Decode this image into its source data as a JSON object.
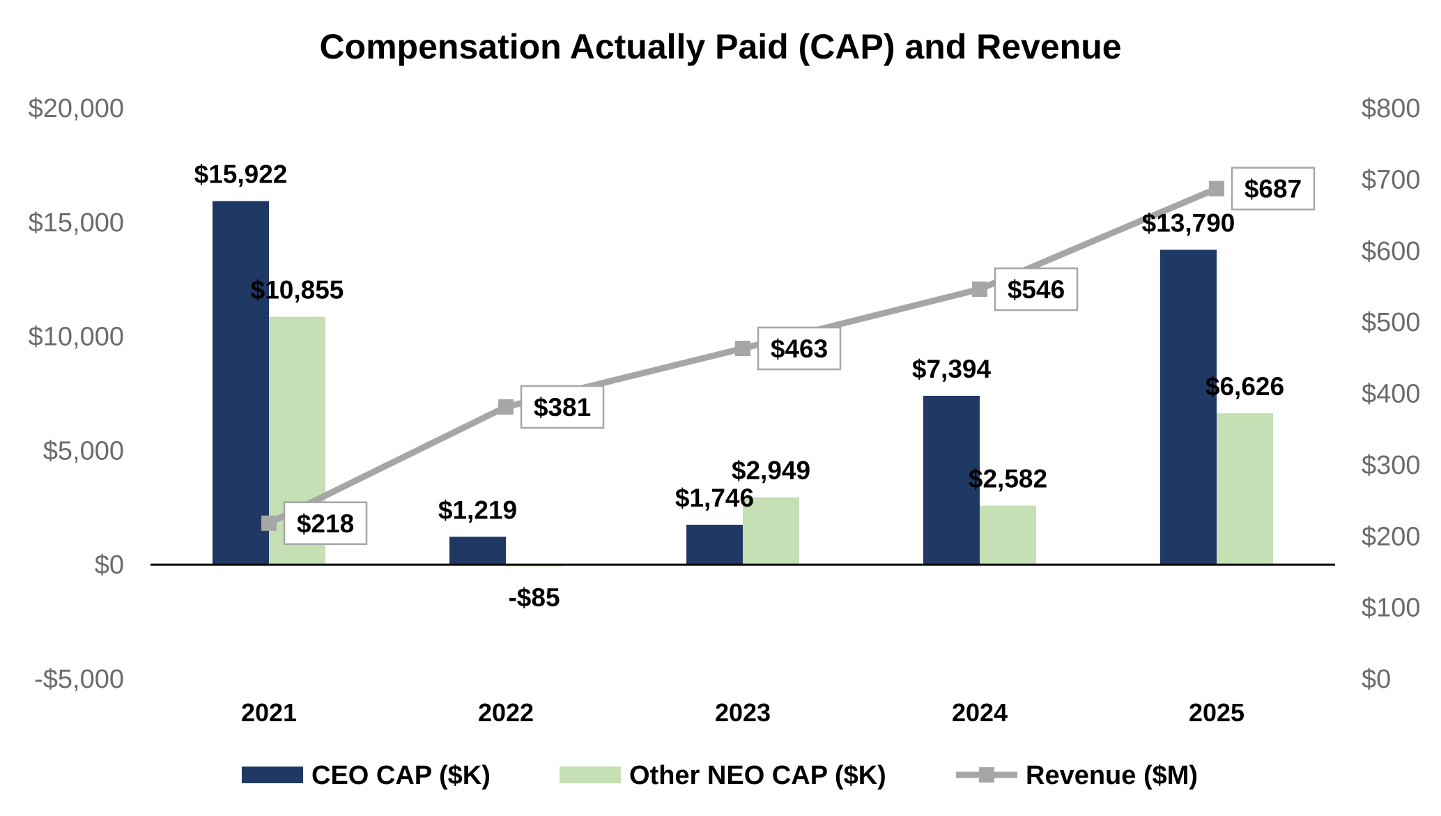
{
  "chart_data": {
    "type": "bar",
    "title": "Compensation Actually Paid (CAP) and Revenue",
    "categories": [
      "2021",
      "2022",
      "2023",
      "2024",
      "2025"
    ],
    "series": [
      {
        "name": "CEO CAP ($K)",
        "type": "bar",
        "axis": "left",
        "color": "#1f3864",
        "values": [
          15922,
          1219,
          1746,
          7394,
          13790
        ],
        "labels": [
          "$15,922",
          "$1,219",
          "$1,746",
          "$7,394",
          "$13,790"
        ]
      },
      {
        "name": "Other NEO CAP ($K)",
        "type": "bar",
        "axis": "left",
        "color": "#c5e0b4",
        "values": [
          10855,
          -85,
          2949,
          2582,
          6626
        ],
        "labels": [
          "$10,855",
          "-$85",
          "$2,949",
          "$2,582",
          "$6,626"
        ]
      },
      {
        "name": "Revenue ($M)",
        "type": "line",
        "axis": "right",
        "color": "#a6a6a6",
        "values": [
          218,
          381,
          463,
          546,
          687
        ],
        "labels": [
          "$218",
          "$381",
          "$463",
          "$546",
          "$687"
        ]
      }
    ],
    "y_left": {
      "range": [
        -5000,
        20000
      ],
      "ticks": [
        -5000,
        0,
        5000,
        10000,
        15000,
        20000
      ],
      "tick_labels": [
        "-$5,000",
        "$0",
        "$5,000",
        "$10,000",
        "$15,000",
        "$20,000"
      ]
    },
    "y_right": {
      "range": [
        0,
        800
      ],
      "ticks": [
        0,
        100,
        200,
        300,
        400,
        500,
        600,
        700,
        800
      ],
      "tick_labels": [
        "$0",
        "$100",
        "$200",
        "$300",
        "$400",
        "$500",
        "$600",
        "$700",
        "$800"
      ]
    },
    "legend": {
      "position": "bottom",
      "items": [
        "CEO CAP ($K)",
        "Other NEO CAP ($K)",
        "Revenue ($M)"
      ]
    },
    "grid": false
  }
}
